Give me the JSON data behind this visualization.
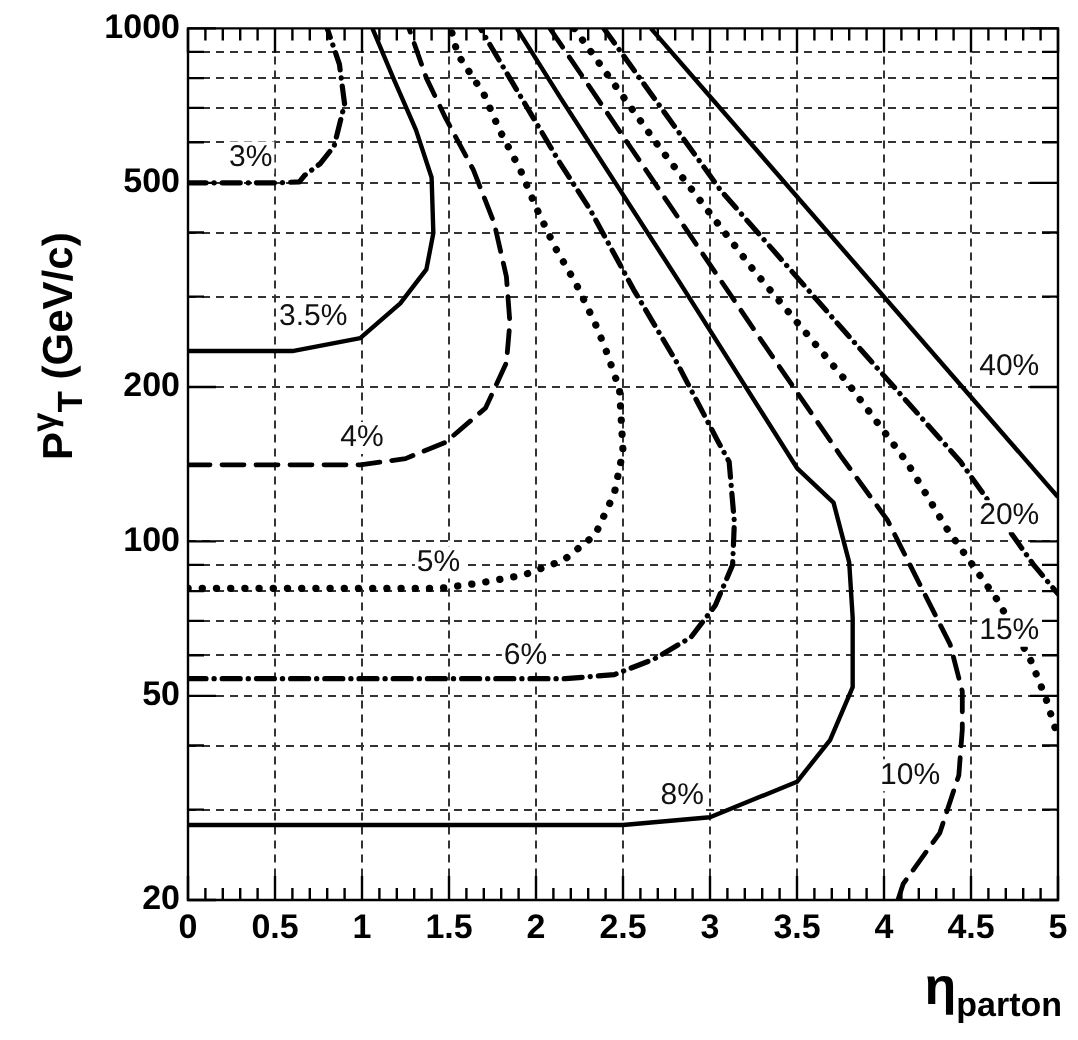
{
  "chart_data": {
    "type": "line",
    "xlabel": "η$_{parton}$",
    "ylabel": "P$^{γ}$$_{T}$ (GeV/c)",
    "log": "y",
    "grid": true,
    "marker": "none",
    "xlim": [
      0,
      5
    ],
    "ylim": [
      20,
      1000
    ],
    "xticks": [
      0,
      {
        "value": 0.1,
        "label": null
      },
      {
        "value": 0.2,
        "label": null
      },
      {
        "value": 0.3,
        "label": null
      },
      {
        "value": 0.4,
        "label": null
      },
      0.5,
      {
        "value": 0.6,
        "label": null
      },
      {
        "value": 0.7,
        "label": null
      },
      {
        "value": 0.8,
        "label": null
      },
      {
        "value": 0.9,
        "label": null
      },
      1,
      {
        "value": 1.1,
        "label": null
      },
      {
        "value": 1.2,
        "label": null
      },
      {
        "value": 1.3,
        "label": null
      },
      {
        "value": 1.4,
        "label": null
      },
      1.5,
      {
        "value": 1.6,
        "label": null
      },
      {
        "value": 1.7,
        "label": null
      },
      {
        "value": 1.8,
        "label": null
      },
      {
        "value": 1.9,
        "label": null
      },
      2,
      {
        "value": 2.1,
        "label": null
      },
      {
        "value": 2.2,
        "label": null
      },
      {
        "value": 2.3,
        "label": null
      },
      {
        "value": 2.4,
        "label": null
      },
      2.5,
      {
        "value": 2.6,
        "label": null
      },
      {
        "value": 2.7,
        "label": null
      },
      {
        "value": 2.8,
        "label": null
      },
      {
        "value": 2.9,
        "label": null
      },
      3,
      {
        "value": 3.1,
        "label": null
      },
      {
        "value": 3.2,
        "label": null
      },
      {
        "value": 3.3,
        "label": null
      },
      {
        "value": 3.4,
        "label": null
      },
      3.5,
      {
        "value": 3.6,
        "label": null
      },
      {
        "value": 3.7,
        "label": null
      },
      {
        "value": 3.8,
        "label": null
      },
      {
        "value": 3.9,
        "label": null
      },
      4,
      {
        "value": 4.1,
        "label": null
      },
      {
        "value": 4.2,
        "label": null
      },
      {
        "value": 4.3,
        "label": null
      },
      {
        "value": 4.4,
        "label": null
      },
      4.5,
      {
        "value": 4.6,
        "label": null
      },
      {
        "value": 4.7,
        "label": null
      },
      {
        "value": 4.8,
        "label": null
      },
      {
        "value": 4.9,
        "label": null
      },
      5
    ],
    "yticks": [
      20,
      {
        "value": 30,
        "label": null
      },
      {
        "value": 40,
        "label": null
      },
      50,
      {
        "value": 60,
        "label": null
      },
      {
        "value": 70,
        "label": null
      },
      {
        "value": 80,
        "label": null
      },
      {
        "value": 90,
        "label": null
      },
      100,
      200,
      {
        "value": 300,
        "label": null
      },
      {
        "value": 400,
        "label": null
      },
      500,
      {
        "value": 600,
        "label": null
      },
      {
        "value": 700,
        "label": null
      },
      {
        "value": 800,
        "label": null
      },
      {
        "value": 900,
        "label": null
      },
      1000
    ],
    "series": [
      {
        "color": "#000000",
        "line_style": "dashdot",
        "x": [
          0,
          0.5,
          0.64,
          0.67,
          0.76,
          0.84,
          0.9,
          0.87,
          0.8
        ],
        "values": [
          500,
          500,
          502,
          517,
          545,
          590,
          712,
          852,
          1000
        ]
      },
      {
        "color": "#000000",
        "line_style": "solid",
        "x": [
          0,
          0.6,
          0.99,
          1.22,
          1.37,
          1.41,
          1.4,
          1.31,
          1.18,
          1.06
        ],
        "values": [
          235,
          235,
          249,
          291,
          339,
          399,
          512,
          634,
          800,
          1000
        ]
      },
      {
        "color": "#000000",
        "line_style": "dashed",
        "x": [
          0,
          0.99,
          1.25,
          1.48,
          1.71,
          1.83,
          1.85,
          1.83,
          1.76,
          1.64,
          1.48,
          1.37,
          1.27
        ],
        "values": [
          141,
          141,
          145,
          156,
          182,
          223,
          267,
          328,
          417,
          530,
          669,
          800,
          1000
        ]
      },
      {
        "color": "#000000",
        "line_style": "dotted",
        "x": [
          0,
          1.45,
          1.68,
          1.93,
          2.16,
          2.34,
          2.45,
          2.5,
          2.48,
          2.4,
          2.34,
          2.23,
          2.11,
          2,
          1.91,
          1.79,
          1.7,
          1.55,
          1.51
        ],
        "values": [
          81,
          81,
          83,
          86,
          92,
          103,
          124,
          150,
          198,
          237,
          266,
          318,
          374,
          448,
          530,
          634,
          745,
          890,
          1000
        ]
      },
      {
        "color": "#000000",
        "line_style": "dashdot",
        "x": [
          0,
          2.17,
          2.45,
          2.68,
          2.89,
          3.03,
          3.13,
          3.14,
          3.11,
          3.04,
          2.81,
          2.56,
          2.31,
          2.14,
          1.68
        ],
        "values": [
          54,
          54,
          55,
          59,
          65,
          75,
          90,
          109,
          143,
          158,
          223,
          310,
          444,
          545,
          1000
        ]
      },
      {
        "color": "#000000",
        "line_style": "solid",
        "x": [
          0,
          2.5,
          3,
          3.5,
          3.69,
          3.82,
          3.82,
          3.8,
          3.71,
          3.5,
          2.83,
          2.14,
          1.89
        ],
        "values": [
          28,
          28,
          29,
          34,
          41,
          52,
          71,
          91,
          119,
          139,
          318,
          733,
          1000
        ]
      },
      {
        "color": "#000000",
        "line_style": "dashed",
        "x": [
          4.08,
          4.11,
          4.32,
          4.43,
          4.45,
          4.45,
          4.38,
          4.25,
          4.02,
          3.75,
          3.29,
          2.08
        ],
        "values": [
          20,
          21.5,
          27,
          35,
          43,
          51,
          63,
          77,
          110,
          147,
          248,
          1000
        ]
      },
      {
        "color": "#000000",
        "line_style": "dotted",
        "x": [
          2.22,
          2.71,
          3.25,
          3.79,
          4.13,
          4.36,
          4.65,
          4.84,
          4.93,
          5
        ],
        "values": [
          1000,
          586,
          338,
          204,
          143,
          106,
          77,
          59,
          49.5,
          41.5
        ]
      },
      {
        "color": "#000000",
        "line_style": "dashdot",
        "x": [
          2.39,
          3.06,
          3.75,
          4.44,
          4.86,
          5
        ],
        "values": [
          1000,
          484,
          262,
          143,
          90,
          79
        ]
      },
      {
        "color": "#000000",
        "line_style": "solid",
        "x": [
          2.66,
          5
        ],
        "values": [
          1000,
          122
        ]
      }
    ],
    "annotations": [
      {
        "text": "3%",
        "x": 0.36,
        "y": 560
      },
      {
        "text": "3.5%",
        "x": 0.72,
        "y": 274
      },
      {
        "text": "4%",
        "x": 1.0,
        "y": 159
      },
      {
        "text": "5%",
        "x": 1.44,
        "y": 91
      },
      {
        "text": "6%",
        "x": 1.94,
        "y": 60
      },
      {
        "text": "8%",
        "x": 2.84,
        "y": 32
      },
      {
        "text": "10%",
        "x": 4.15,
        "y": 35
      },
      {
        "text": "15%",
        "x": 4.72,
        "y": 67
      },
      {
        "text": "20%",
        "x": 4.72,
        "y": 112
      },
      {
        "text": "40%",
        "x": 4.72,
        "y": 219
      }
    ]
  }
}
